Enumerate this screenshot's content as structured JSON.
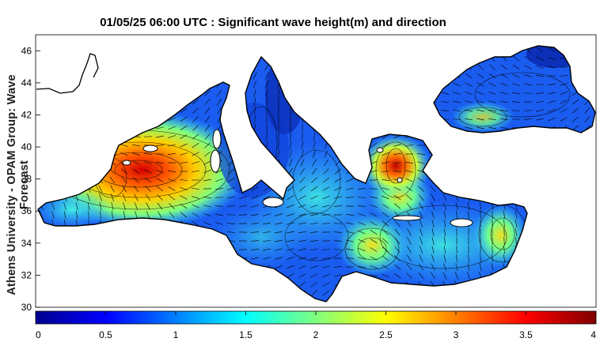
{
  "title": "01/05/25 06:00 UTC : Significant wave height(m) and direction",
  "side_label": "Athens University - OPAM Group: Wave Forecast",
  "map": {
    "lat_ticks": [
      "46",
      "44",
      "42",
      "40",
      "38",
      "36",
      "34",
      "32",
      "30"
    ],
    "lat_range": [
      30,
      47
    ],
    "colors": {
      "land": "#ffffff",
      "sea_base": "#1a5cf0",
      "coastline": "#000000"
    }
  },
  "colorbar": {
    "range": [
      0,
      4
    ],
    "ticks": [
      "0",
      "0.5",
      "1",
      "1.5",
      "2",
      "2.5",
      "3",
      "3.5",
      "4"
    ],
    "colormap": "jet"
  }
}
